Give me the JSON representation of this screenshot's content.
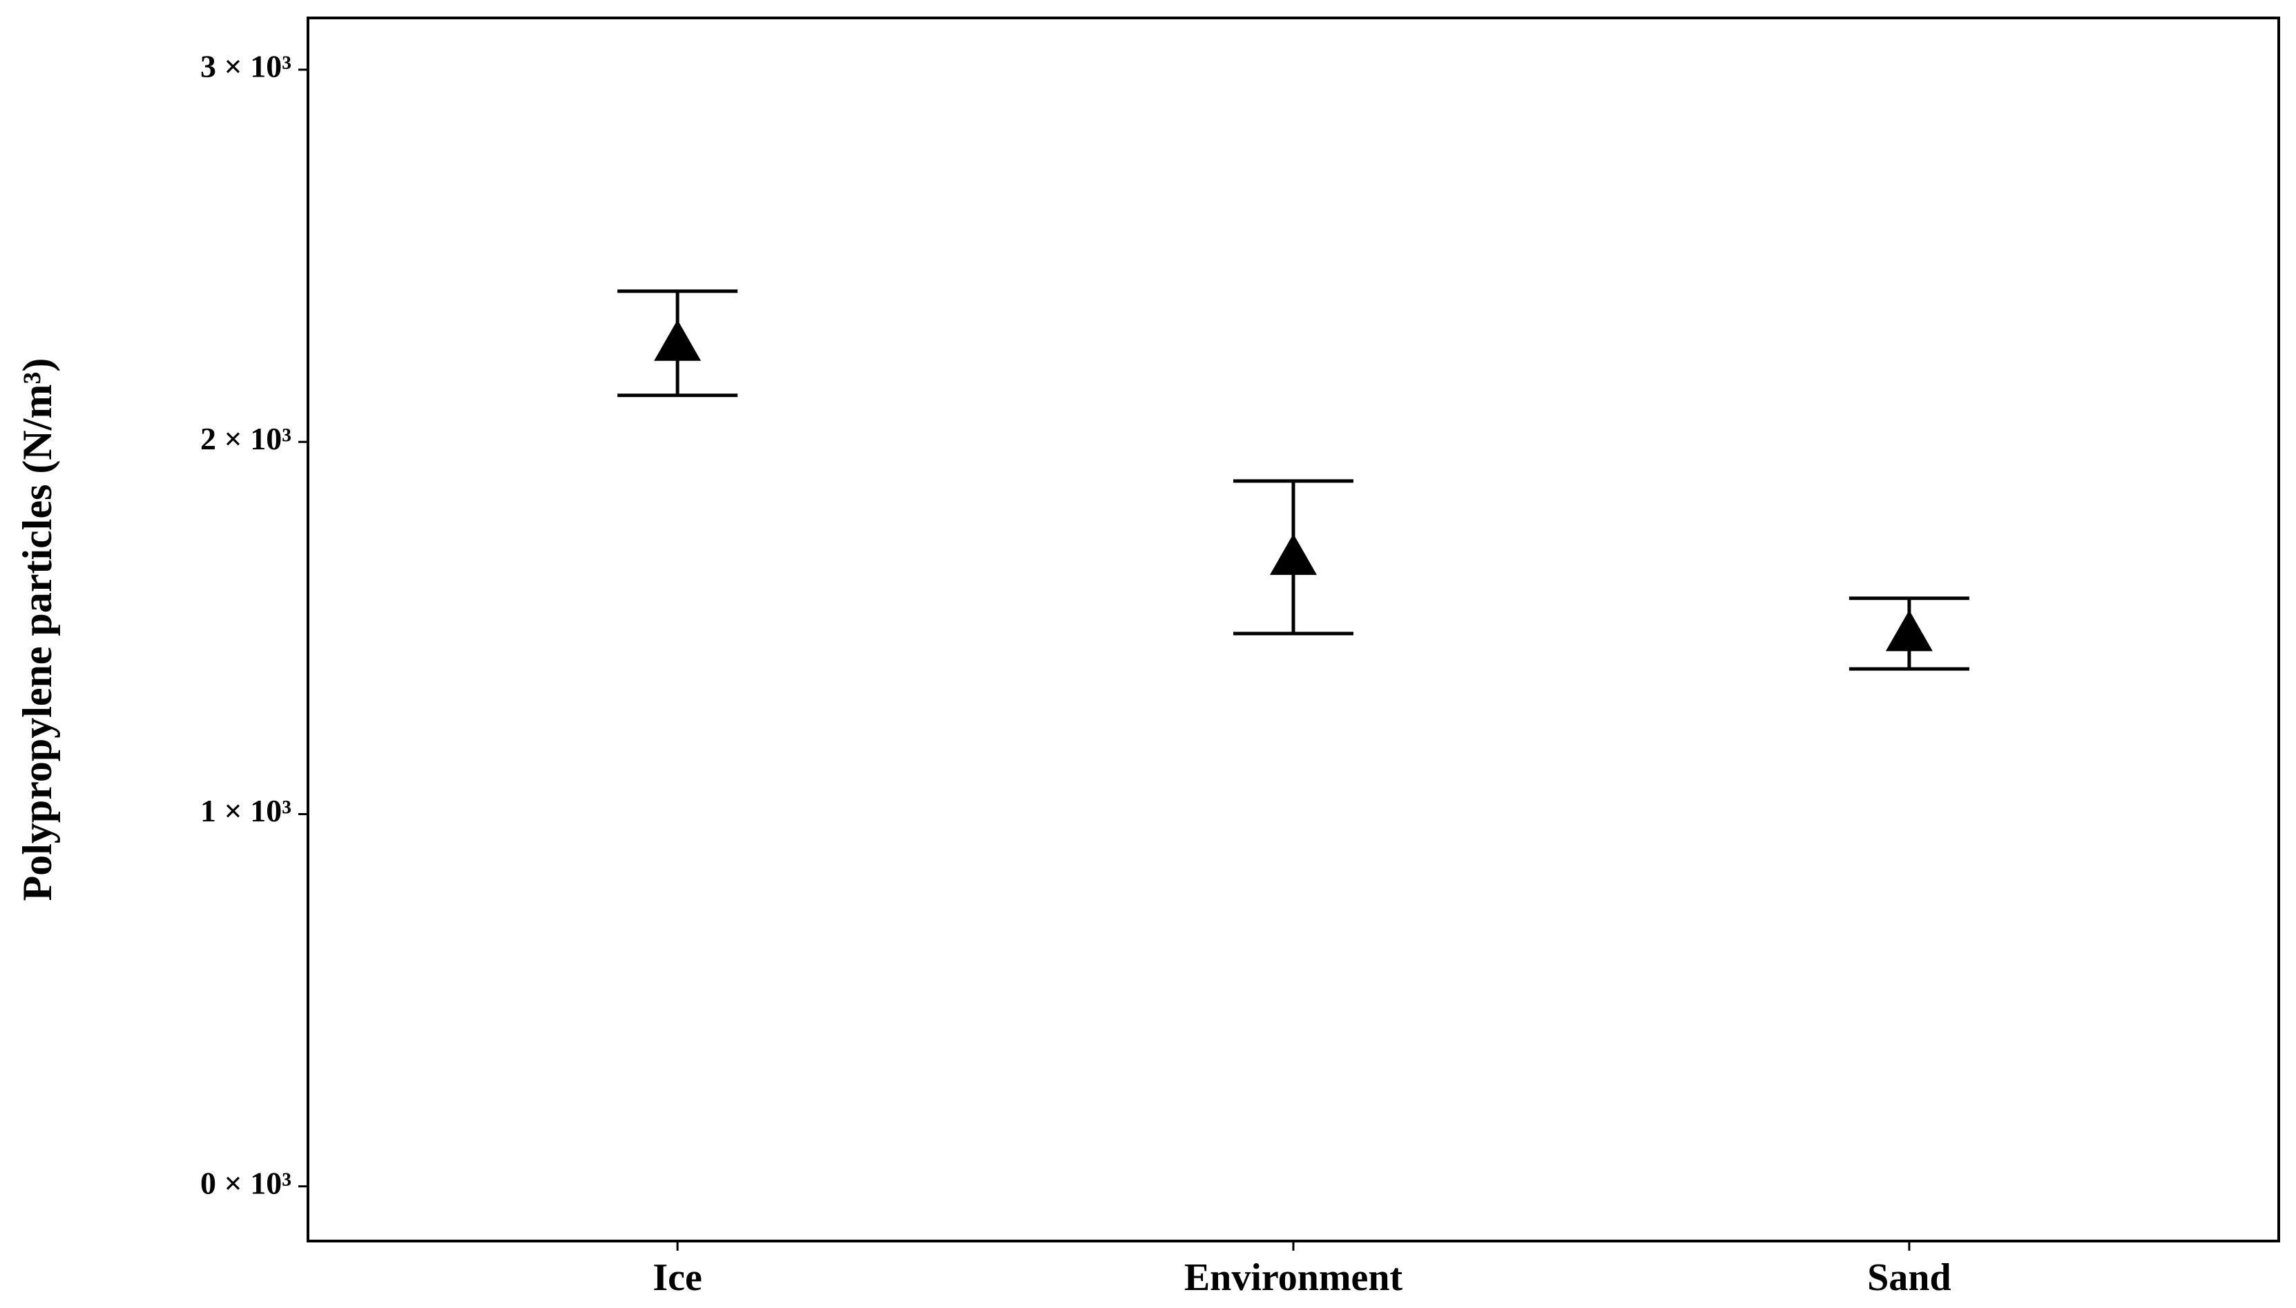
{
  "chart_data": {
    "type": "errorpoint",
    "y_label": "Polypropylene particles (N/m³)",
    "categories": [
      "Ice",
      "Environment",
      "Sand"
    ],
    "values": [
      2265,
      1690,
      1485
    ],
    "errors": [
      140,
      205,
      95
    ],
    "color": "#000000",
    "marker": "triangle",
    "ylim": [
      -147,
      3139
    ],
    "yticks": [
      {
        "value": 0,
        "label": "0 × 10³"
      },
      {
        "value": 1000,
        "label": "1 × 10³"
      },
      {
        "value": 2000,
        "label": "2 × 10³"
      },
      {
        "value": 3000,
        "label": "3 × 10³"
      }
    ],
    "grid": false
  }
}
